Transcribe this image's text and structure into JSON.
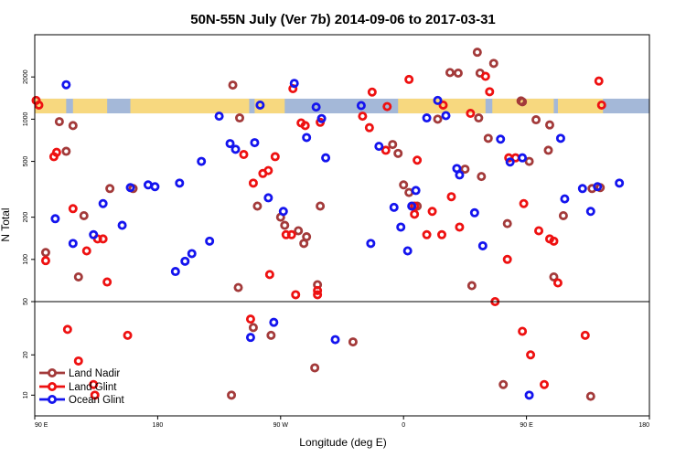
{
  "chart_data": {
    "type": "scatter",
    "title": "50N-55N July (Ver 7b)   2014-09-06 to 2017-03-31",
    "xlabel": "Longitude (deg E)",
    "ylabel": "N Total",
    "xlim": [
      90,
      540
    ],
    "x_ticks": [
      {
        "value": 90,
        "label": "90 E"
      },
      {
        "value": 180,
        "label": "180"
      },
      {
        "value": 270,
        "label": "90 W"
      },
      {
        "value": 360,
        "label": "0"
      },
      {
        "value": 450,
        "label": "90 E"
      },
      {
        "value": 540,
        "label": "180"
      }
    ],
    "upper_panel": {
      "scale": "log",
      "ylim": [
        50,
        4000
      ],
      "y_ticks": [
        50,
        100,
        200,
        500,
        1000,
        2000
      ]
    },
    "lower_panel": {
      "scale": "log",
      "ylim": [
        7,
        50
      ],
      "y_ticks": [
        10,
        20,
        50
      ]
    },
    "land_band": {
      "description": "land/ocean mask band",
      "y_range": [
        1100,
        1400
      ],
      "ocean_color": "#a4b8d8",
      "land_color": "#f7d87f"
    },
    "legend": {
      "position": "bottom-left",
      "entries": [
        "Land Nadir",
        "Land Glint",
        "Ocean Glint"
      ]
    },
    "series": [
      {
        "name": "Land Nadir",
        "color": "#a33a3a",
        "points": [
          [
            98,
            112
          ],
          [
            108,
            960
          ],
          [
            113,
            590
          ],
          [
            118,
            900
          ],
          [
            122,
            75
          ],
          [
            126,
            205
          ],
          [
            145,
            320
          ],
          [
            162,
            320
          ],
          [
            234,
            10
          ],
          [
            235,
            1750
          ],
          [
            239,
            63
          ],
          [
            240,
            1020
          ],
          [
            250,
            32
          ],
          [
            253,
            240
          ],
          [
            263,
            28
          ],
          [
            270,
            200
          ],
          [
            273,
            175
          ],
          [
            283,
            160
          ],
          [
            287,
            130
          ],
          [
            289,
            145
          ],
          [
            295,
            16
          ],
          [
            297,
            66
          ],
          [
            299,
            240
          ],
          [
            323,
            25
          ],
          [
            352,
            660
          ],
          [
            356,
            570
          ],
          [
            360,
            340
          ],
          [
            364,
            300
          ],
          [
            370,
            240
          ],
          [
            385,
            1000
          ],
          [
            394,
            2150
          ],
          [
            400,
            2130
          ],
          [
            405,
            440
          ],
          [
            410,
            65
          ],
          [
            414,
            3000
          ],
          [
            415,
            1020
          ],
          [
            416,
            2130
          ],
          [
            417,
            390
          ],
          [
            422,
            730
          ],
          [
            426,
            2500
          ],
          [
            433,
            12
          ],
          [
            436,
            180
          ],
          [
            446,
            1350
          ],
          [
            447,
            1330
          ],
          [
            452,
            500
          ],
          [
            457,
            990
          ],
          [
            466,
            600
          ],
          [
            467,
            910
          ],
          [
            470,
            75
          ],
          [
            477,
            205
          ],
          [
            497,
            9.8
          ],
          [
            498,
            320
          ],
          [
            504,
            325
          ]
        ]
      },
      {
        "name": "Land Glint",
        "color": "#ee1111",
        "points": [
          [
            91,
            1360
          ],
          [
            93,
            1260
          ],
          [
            98,
            98
          ],
          [
            104,
            540
          ],
          [
            106,
            580
          ],
          [
            114,
            31
          ],
          [
            118,
            230
          ],
          [
            122,
            18
          ],
          [
            128,
            115
          ],
          [
            133,
            12
          ],
          [
            134,
            10
          ],
          [
            136,
            140
          ],
          [
            140,
            140
          ],
          [
            143,
            69
          ],
          [
            158,
            28
          ],
          [
            243,
            560
          ],
          [
            248,
            37
          ],
          [
            250,
            350
          ],
          [
            257,
            410
          ],
          [
            261,
            430
          ],
          [
            262,
            78
          ],
          [
            266,
            540
          ],
          [
            274,
            150
          ],
          [
            278,
            150
          ],
          [
            279,
            1650
          ],
          [
            281,
            56
          ],
          [
            285,
            940
          ],
          [
            288,
            900
          ],
          [
            297,
            60
          ],
          [
            297,
            56
          ],
          [
            299,
            950
          ],
          [
            330,
            1050
          ],
          [
            335,
            870
          ],
          [
            337,
            1560
          ],
          [
            347,
            600
          ],
          [
            348,
            1230
          ],
          [
            364,
            1920
          ],
          [
            368,
            240
          ],
          [
            368,
            210
          ],
          [
            370,
            510
          ],
          [
            377,
            150
          ],
          [
            381,
            220
          ],
          [
            388,
            150
          ],
          [
            389,
            1260
          ],
          [
            395,
            280
          ],
          [
            401,
            170
          ],
          [
            409,
            1100
          ],
          [
            420,
            2020
          ],
          [
            423,
            1570
          ],
          [
            427,
            50
          ],
          [
            436,
            100
          ],
          [
            437,
            530
          ],
          [
            442,
            530
          ],
          [
            447,
            30
          ],
          [
            448,
            250
          ],
          [
            453,
            20
          ],
          [
            459,
            160
          ],
          [
            463,
            12
          ],
          [
            467,
            140
          ],
          [
            470,
            135
          ],
          [
            473,
            68
          ],
          [
            493,
            28
          ],
          [
            503,
            1870
          ],
          [
            505,
            1260
          ]
        ]
      },
      {
        "name": "Ocean Glint",
        "color": "#1414ee",
        "points": [
          [
            105,
            195
          ],
          [
            113,
            1760
          ],
          [
            118,
            130
          ],
          [
            133,
            150
          ],
          [
            140,
            250
          ],
          [
            154,
            175
          ],
          [
            160,
            325
          ],
          [
            173,
            340
          ],
          [
            178,
            330
          ],
          [
            193,
            82
          ],
          [
            196,
            350
          ],
          [
            200,
            97
          ],
          [
            205,
            110
          ],
          [
            212,
            500
          ],
          [
            218,
            135
          ],
          [
            225,
            1050
          ],
          [
            233,
            670
          ],
          [
            237,
            610
          ],
          [
            248,
            27
          ],
          [
            251,
            680
          ],
          [
            255,
            1260
          ],
          [
            261,
            275
          ],
          [
            265,
            35
          ],
          [
            272,
            220
          ],
          [
            280,
            1800
          ],
          [
            289,
            740
          ],
          [
            296,
            1220
          ],
          [
            300,
            1010
          ],
          [
            303,
            530
          ],
          [
            310,
            26
          ],
          [
            329,
            1250
          ],
          [
            336,
            130
          ],
          [
            342,
            640
          ],
          [
            353,
            235
          ],
          [
            358,
            170
          ],
          [
            363,
            115
          ],
          [
            366,
            240
          ],
          [
            369,
            310
          ],
          [
            377,
            1020
          ],
          [
            385,
            1360
          ],
          [
            391,
            1060
          ],
          [
            399,
            445
          ],
          [
            401,
            400
          ],
          [
            412,
            215
          ],
          [
            418,
            125
          ],
          [
            431,
            720
          ],
          [
            438,
            495
          ],
          [
            447,
            530
          ],
          [
            452,
            10
          ],
          [
            475,
            730
          ],
          [
            478,
            270
          ],
          [
            491,
            320
          ],
          [
            497,
            220
          ],
          [
            502,
            330
          ],
          [
            518,
            350
          ]
        ]
      }
    ]
  }
}
